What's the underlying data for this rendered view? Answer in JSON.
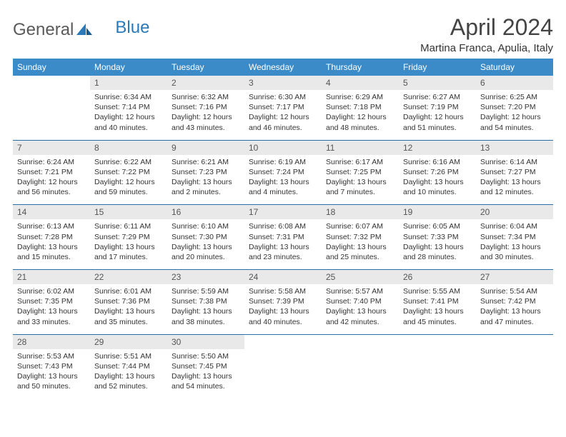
{
  "logo": {
    "general": "General",
    "blue": "Blue"
  },
  "title": "April 2024",
  "location": "Martina Franca, Apulia, Italy",
  "colors": {
    "header_bg": "#3b8bc9",
    "header_fg": "#ffffff",
    "daynum_bg": "#e9e9e9",
    "border": "#2a6fa5",
    "logo_accent": "#2a7ab9"
  },
  "weekdays": [
    "Sunday",
    "Monday",
    "Tuesday",
    "Wednesday",
    "Thursday",
    "Friday",
    "Saturday"
  ],
  "weeks": [
    [
      {
        "n": "",
        "sr": "",
        "ss": "",
        "dl": ""
      },
      {
        "n": "1",
        "sr": "Sunrise: 6:34 AM",
        "ss": "Sunset: 7:14 PM",
        "dl": "Daylight: 12 hours and 40 minutes."
      },
      {
        "n": "2",
        "sr": "Sunrise: 6:32 AM",
        "ss": "Sunset: 7:16 PM",
        "dl": "Daylight: 12 hours and 43 minutes."
      },
      {
        "n": "3",
        "sr": "Sunrise: 6:30 AM",
        "ss": "Sunset: 7:17 PM",
        "dl": "Daylight: 12 hours and 46 minutes."
      },
      {
        "n": "4",
        "sr": "Sunrise: 6:29 AM",
        "ss": "Sunset: 7:18 PM",
        "dl": "Daylight: 12 hours and 48 minutes."
      },
      {
        "n": "5",
        "sr": "Sunrise: 6:27 AM",
        "ss": "Sunset: 7:19 PM",
        "dl": "Daylight: 12 hours and 51 minutes."
      },
      {
        "n": "6",
        "sr": "Sunrise: 6:25 AM",
        "ss": "Sunset: 7:20 PM",
        "dl": "Daylight: 12 hours and 54 minutes."
      }
    ],
    [
      {
        "n": "7",
        "sr": "Sunrise: 6:24 AM",
        "ss": "Sunset: 7:21 PM",
        "dl": "Daylight: 12 hours and 56 minutes."
      },
      {
        "n": "8",
        "sr": "Sunrise: 6:22 AM",
        "ss": "Sunset: 7:22 PM",
        "dl": "Daylight: 12 hours and 59 minutes."
      },
      {
        "n": "9",
        "sr": "Sunrise: 6:21 AM",
        "ss": "Sunset: 7:23 PM",
        "dl": "Daylight: 13 hours and 2 minutes."
      },
      {
        "n": "10",
        "sr": "Sunrise: 6:19 AM",
        "ss": "Sunset: 7:24 PM",
        "dl": "Daylight: 13 hours and 4 minutes."
      },
      {
        "n": "11",
        "sr": "Sunrise: 6:17 AM",
        "ss": "Sunset: 7:25 PM",
        "dl": "Daylight: 13 hours and 7 minutes."
      },
      {
        "n": "12",
        "sr": "Sunrise: 6:16 AM",
        "ss": "Sunset: 7:26 PM",
        "dl": "Daylight: 13 hours and 10 minutes."
      },
      {
        "n": "13",
        "sr": "Sunrise: 6:14 AM",
        "ss": "Sunset: 7:27 PM",
        "dl": "Daylight: 13 hours and 12 minutes."
      }
    ],
    [
      {
        "n": "14",
        "sr": "Sunrise: 6:13 AM",
        "ss": "Sunset: 7:28 PM",
        "dl": "Daylight: 13 hours and 15 minutes."
      },
      {
        "n": "15",
        "sr": "Sunrise: 6:11 AM",
        "ss": "Sunset: 7:29 PM",
        "dl": "Daylight: 13 hours and 17 minutes."
      },
      {
        "n": "16",
        "sr": "Sunrise: 6:10 AM",
        "ss": "Sunset: 7:30 PM",
        "dl": "Daylight: 13 hours and 20 minutes."
      },
      {
        "n": "17",
        "sr": "Sunrise: 6:08 AM",
        "ss": "Sunset: 7:31 PM",
        "dl": "Daylight: 13 hours and 23 minutes."
      },
      {
        "n": "18",
        "sr": "Sunrise: 6:07 AM",
        "ss": "Sunset: 7:32 PM",
        "dl": "Daylight: 13 hours and 25 minutes."
      },
      {
        "n": "19",
        "sr": "Sunrise: 6:05 AM",
        "ss": "Sunset: 7:33 PM",
        "dl": "Daylight: 13 hours and 28 minutes."
      },
      {
        "n": "20",
        "sr": "Sunrise: 6:04 AM",
        "ss": "Sunset: 7:34 PM",
        "dl": "Daylight: 13 hours and 30 minutes."
      }
    ],
    [
      {
        "n": "21",
        "sr": "Sunrise: 6:02 AM",
        "ss": "Sunset: 7:35 PM",
        "dl": "Daylight: 13 hours and 33 minutes."
      },
      {
        "n": "22",
        "sr": "Sunrise: 6:01 AM",
        "ss": "Sunset: 7:36 PM",
        "dl": "Daylight: 13 hours and 35 minutes."
      },
      {
        "n": "23",
        "sr": "Sunrise: 5:59 AM",
        "ss": "Sunset: 7:38 PM",
        "dl": "Daylight: 13 hours and 38 minutes."
      },
      {
        "n": "24",
        "sr": "Sunrise: 5:58 AM",
        "ss": "Sunset: 7:39 PM",
        "dl": "Daylight: 13 hours and 40 minutes."
      },
      {
        "n": "25",
        "sr": "Sunrise: 5:57 AM",
        "ss": "Sunset: 7:40 PM",
        "dl": "Daylight: 13 hours and 42 minutes."
      },
      {
        "n": "26",
        "sr": "Sunrise: 5:55 AM",
        "ss": "Sunset: 7:41 PM",
        "dl": "Daylight: 13 hours and 45 minutes."
      },
      {
        "n": "27",
        "sr": "Sunrise: 5:54 AM",
        "ss": "Sunset: 7:42 PM",
        "dl": "Daylight: 13 hours and 47 minutes."
      }
    ],
    [
      {
        "n": "28",
        "sr": "Sunrise: 5:53 AM",
        "ss": "Sunset: 7:43 PM",
        "dl": "Daylight: 13 hours and 50 minutes."
      },
      {
        "n": "29",
        "sr": "Sunrise: 5:51 AM",
        "ss": "Sunset: 7:44 PM",
        "dl": "Daylight: 13 hours and 52 minutes."
      },
      {
        "n": "30",
        "sr": "Sunrise: 5:50 AM",
        "ss": "Sunset: 7:45 PM",
        "dl": "Daylight: 13 hours and 54 minutes."
      },
      {
        "n": "",
        "sr": "",
        "ss": "",
        "dl": ""
      },
      {
        "n": "",
        "sr": "",
        "ss": "",
        "dl": ""
      },
      {
        "n": "",
        "sr": "",
        "ss": "",
        "dl": ""
      },
      {
        "n": "",
        "sr": "",
        "ss": "",
        "dl": ""
      }
    ]
  ]
}
